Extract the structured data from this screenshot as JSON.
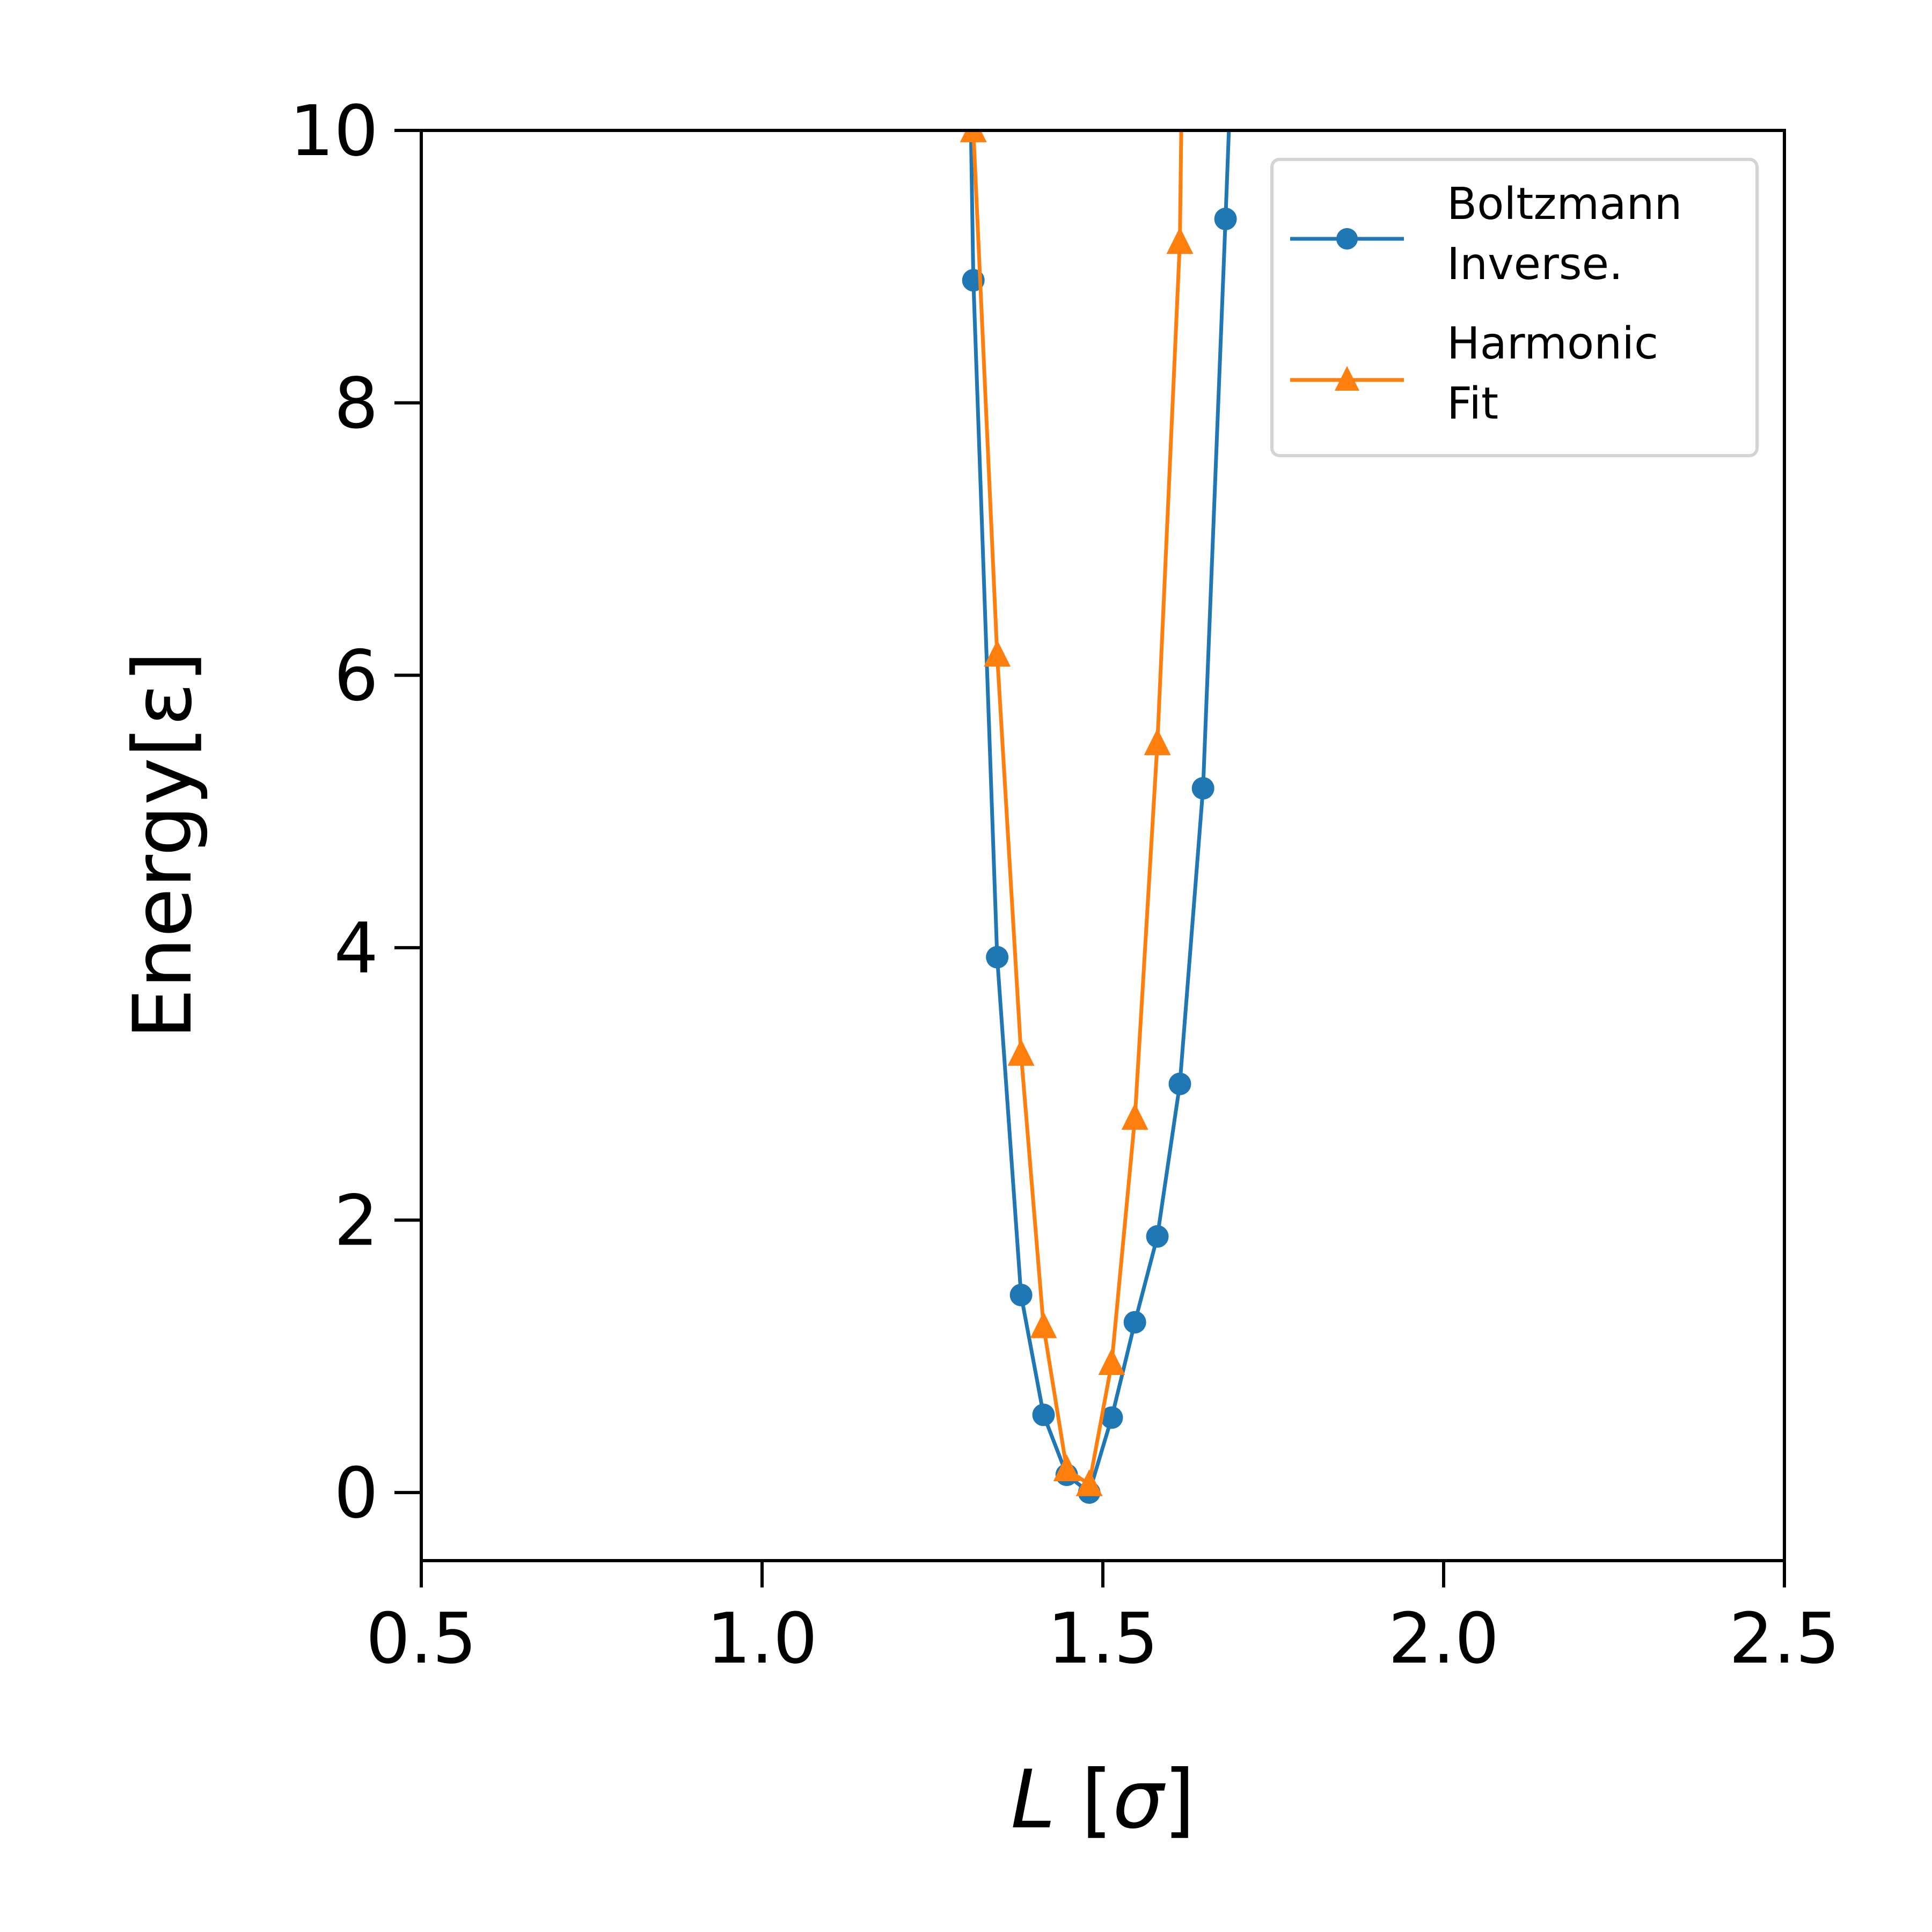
{
  "chart_data": {
    "type": "line",
    "xlabel": "L [σ]",
    "ylabel": "Energy[ε]",
    "xlim": [
      0.5,
      2.5
    ],
    "ylim": [
      -0.5,
      10
    ],
    "xticks": [
      0.5,
      1.0,
      1.5,
      2.0,
      2.5
    ],
    "xtick_labels": [
      "0.5",
      "1.0",
      "1.5",
      "2.0",
      "2.5"
    ],
    "yticks": [
      0,
      2,
      4,
      6,
      8,
      10
    ],
    "ytick_labels": [
      "0",
      "2",
      "4",
      "6",
      "8",
      "10"
    ],
    "grid": false,
    "legend_position": "top-right",
    "series": [
      {
        "name": "Boltzmann Inverse.",
        "legend_lines": [
          "Boltzmann",
          "Inverse."
        ],
        "color": "#1f77b4",
        "marker": "circle",
        "x": [
          1.31,
          1.345,
          1.38,
          1.413,
          1.447,
          1.48,
          1.513,
          1.547,
          1.58,
          1.613,
          1.647,
          1.68
        ],
        "y": [
          8.9,
          3.93,
          1.45,
          0.57,
          0.13,
          0.0,
          0.55,
          1.25,
          1.88,
          3.0,
          5.17,
          9.35
        ],
        "line_extends_to": {
          "left": [
            1.3,
            12.0
          ],
          "right": [
            1.7,
            12.0
          ]
        }
      },
      {
        "name": "Harmonic Fit",
        "legend_lines": [
          "Harmonic",
          "Fit"
        ],
        "color": "#ff7f0e",
        "marker": "triangle",
        "x": [
          1.31,
          1.345,
          1.38,
          1.413,
          1.447,
          1.48,
          1.513,
          1.547,
          1.58,
          1.613
        ],
        "y": [
          10.0,
          6.15,
          3.22,
          1.22,
          0.17,
          0.06,
          0.95,
          2.75,
          5.5,
          9.18
        ],
        "line_extends_to": {
          "right": [
            1.62,
            12.0
          ]
        }
      }
    ]
  }
}
